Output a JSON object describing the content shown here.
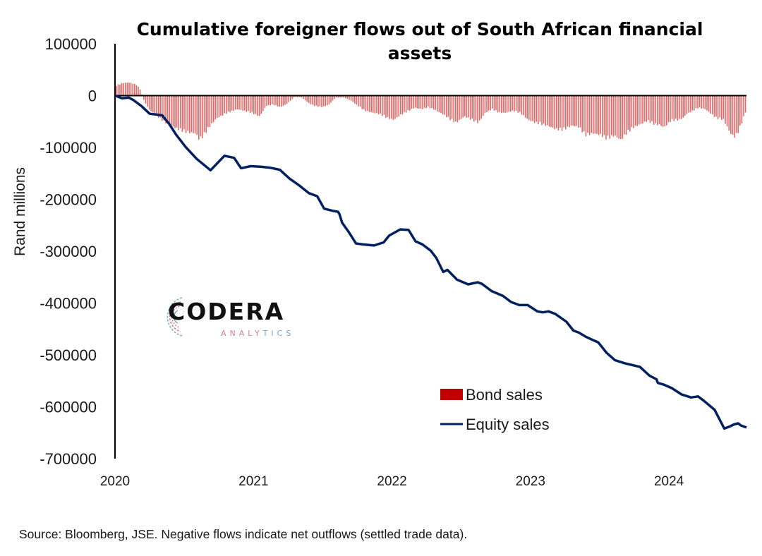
{
  "chart_data": {
    "type": "bar+line",
    "title": "Cumulative foreigner flows out of South African financial assets",
    "title_lines": [
      "Cumulative foreigner flows out of South African financial",
      "assets"
    ],
    "xlabel": "",
    "ylabel": "Rand millions",
    "ylim": [
      -700000,
      100000
    ],
    "yticks": [
      100000,
      0,
      -100000,
      -200000,
      -300000,
      -400000,
      -500000,
      -600000,
      -700000
    ],
    "ytick_labels": [
      "100000",
      "0",
      "-100000",
      "-200000",
      "-300000",
      "-400000",
      "-500000",
      "-600000",
      "-700000"
    ],
    "xlim": [
      2020.0,
      2024.56
    ],
    "xticks": [
      2020,
      2021,
      2022,
      2023,
      2024
    ],
    "xtick_labels": [
      "2020",
      "2021",
      "2022",
      "2023",
      "2024"
    ],
    "grid": false,
    "legend_position": "bottom-right",
    "series": [
      {
        "name": "Bond sales",
        "kind": "bar",
        "color": "#c00000",
        "x": [
          2020.0,
          2020.05,
          2020.1,
          2020.15,
          2020.18,
          2020.2,
          2020.24,
          2020.3,
          2020.36,
          2020.43,
          2020.5,
          2020.58,
          2020.6,
          2020.63,
          2020.68,
          2020.73,
          2020.8,
          2020.88,
          2020.98,
          2021.04,
          2021.09,
          2021.14,
          2021.19,
          2021.24,
          2021.29,
          2021.34,
          2021.39,
          2021.43,
          2021.49,
          2021.54,
          2021.59,
          2021.65,
          2021.7,
          2021.75,
          2021.8,
          2021.86,
          2021.91,
          2021.96,
          2022.01,
          2022.06,
          2022.11,
          2022.16,
          2022.21,
          2022.26,
          2022.31,
          2022.37,
          2022.42,
          2022.46,
          2022.52,
          2022.57,
          2022.62,
          2022.67,
          2022.72,
          2022.77,
          2022.82,
          2022.87,
          2022.92,
          2022.98,
          2023.03,
          2023.08,
          2023.13,
          2023.18,
          2023.23,
          2023.3,
          2023.35,
          2023.39,
          2023.45,
          2023.5,
          2023.55,
          2023.6,
          2023.65,
          2023.69,
          2023.74,
          2023.79,
          2023.84,
          2023.89,
          2023.93,
          2023.96,
          2024.01,
          2024.07,
          2024.1,
          2024.12,
          2024.17,
          2024.21,
          2024.26,
          2024.34,
          2024.39,
          2024.44,
          2024.47,
          2024.5,
          2024.56
        ],
        "values": [
          20000,
          25000,
          26000,
          22000,
          12000,
          -7000,
          -27000,
          -41000,
          -54000,
          -64000,
          -72000,
          -75000,
          -86000,
          -82000,
          -61000,
          -45000,
          -35000,
          -27000,
          -34000,
          -41000,
          -20000,
          -18000,
          -23000,
          -16000,
          -3000,
          -3000,
          -14000,
          -20000,
          -23000,
          -18000,
          -4000,
          -4000,
          -10000,
          -20000,
          -30000,
          -34000,
          -37000,
          -44000,
          -48000,
          -38000,
          -31000,
          -24000,
          -27000,
          -23000,
          -29000,
          -38000,
          -48000,
          -54000,
          -41000,
          -48000,
          -54000,
          -34000,
          -27000,
          -34000,
          -34000,
          -30000,
          -34000,
          -48000,
          -54000,
          -57000,
          -61000,
          -67000,
          -68000,
          -59000,
          -63000,
          -79000,
          -75000,
          -78000,
          -86000,
          -79000,
          -88000,
          -75000,
          -63000,
          -57000,
          -50000,
          -57000,
          -58000,
          -63000,
          -50000,
          -48000,
          -44000,
          -37000,
          -30000,
          -24000,
          -27000,
          -45000,
          -48000,
          -75000,
          -82000,
          -71000,
          -24000
        ]
      },
      {
        "name": "Equity sales",
        "kind": "line",
        "color": "#002060",
        "x": [
          2020.0,
          2020.05,
          2020.1,
          2020.13,
          2020.19,
          2020.25,
          2020.34,
          2020.39,
          2020.44,
          2020.51,
          2020.59,
          2020.69,
          2020.79,
          2020.86,
          2020.91,
          2020.98,
          2021.05,
          2021.12,
          2021.19,
          2021.26,
          2021.33,
          2021.4,
          2021.46,
          2021.51,
          2021.57,
          2021.61,
          2021.62,
          2021.64,
          2021.69,
          2021.74,
          2021.79,
          2021.87,
          2021.94,
          2021.98,
          2022.06,
          2022.12,
          2022.17,
          2022.22,
          2022.28,
          2022.32,
          2022.37,
          2022.4,
          2022.47,
          2022.55,
          2022.62,
          2022.65,
          2022.72,
          2022.8,
          2022.86,
          2022.92,
          2022.98,
          2023.05,
          2023.09,
          2023.13,
          2023.18,
          2023.26,
          2023.31,
          2023.35,
          2023.4,
          2023.49,
          2023.55,
          2023.61,
          2023.68,
          2023.79,
          2023.86,
          2023.91,
          2023.92,
          2023.96,
          2024.02,
          2024.09,
          2024.16,
          2024.21,
          2024.25,
          2024.33,
          2024.4,
          2024.44,
          2024.47,
          2024.5,
          2024.52,
          2024.56
        ],
        "values": [
          0,
          -5000,
          -4000,
          -8000,
          -20000,
          -35000,
          -38000,
          -54000,
          -75000,
          -99000,
          -122000,
          -144000,
          -116000,
          -120000,
          -140000,
          -136000,
          -137000,
          -139000,
          -143000,
          -160000,
          -173000,
          -188000,
          -194000,
          -218000,
          -222000,
          -224000,
          -228000,
          -245000,
          -264000,
          -285000,
          -287000,
          -289000,
          -283000,
          -270000,
          -258000,
          -259000,
          -281000,
          -287000,
          -299000,
          -313000,
          -340000,
          -336000,
          -355000,
          -364000,
          -360000,
          -363000,
          -377000,
          -386000,
          -398000,
          -404000,
          -404000,
          -416000,
          -418000,
          -416000,
          -421000,
          -436000,
          -453000,
          -457000,
          -465000,
          -476000,
          -496000,
          -510000,
          -516000,
          -523000,
          -540000,
          -547000,
          -554000,
          -557000,
          -564000,
          -576000,
          -582000,
          -580000,
          -588000,
          -606000,
          -642000,
          -638000,
          -634000,
          -632000,
          -636000,
          -640000
        ]
      }
    ]
  },
  "footer": {
    "source": "Source: Bloomberg, JSE. Negative flows indicate net outflows (settled trade data)."
  },
  "logo": {
    "name": "CODERA",
    "sub_first": "ANALY",
    "sub_second": "TICS"
  },
  "colors": {
    "bond": "#c00000",
    "bond_bar_fill": "#e06a6a",
    "equity": "#002060",
    "axis": "#000000"
  }
}
